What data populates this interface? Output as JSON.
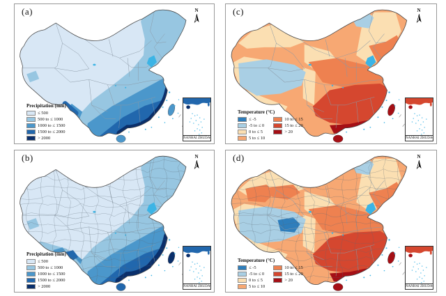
{
  "figure": {
    "water_color": "#3CB4E5",
    "panels": [
      {
        "id": "a",
        "label": "(a)",
        "scheme": "precip",
        "fine": false,
        "north_label": "N",
        "inset_label": "NANHAI ZHUDAO",
        "legend": {
          "title": "Precipitation (mm)",
          "columns": 1,
          "items": [
            {
              "label": "≤ 500",
              "color": "#D8E7F5"
            },
            {
              "label": "500 to ≤ 1000",
              "color": "#97C6E1"
            },
            {
              "label": "1000 to ≤ 1500",
              "color": "#4B97CB"
            },
            {
              "label": "1500 to ≤ 2000",
              "color": "#2167AD"
            },
            {
              "label": "> 2000",
              "color": "#0A2F6B"
            }
          ]
        }
      },
      {
        "id": "b",
        "label": "(b)",
        "scheme": "precip",
        "fine": true,
        "north_label": "N",
        "inset_label": "NANHAI ZHUDAO",
        "legend": {
          "title": "Precipitation (mm)",
          "columns": 1,
          "items": [
            {
              "label": "≤ 500",
              "color": "#D8E7F5"
            },
            {
              "label": "500 to ≤ 1000",
              "color": "#97C6E1"
            },
            {
              "label": "1000 to ≤ 1500",
              "color": "#4B97CB"
            },
            {
              "label": "1500 to ≤ 2000",
              "color": "#2167AD"
            },
            {
              "label": "> 2000",
              "color": "#0A2F6B"
            }
          ]
        }
      },
      {
        "id": "c",
        "label": "(c)",
        "scheme": "temp",
        "fine": false,
        "north_label": "N",
        "inset_label": "NANHAI ZHUDAO",
        "legend": {
          "title": "Temperature (°C)",
          "columns": 2,
          "items": [
            {
              "label": "≤ -5",
              "color": "#2E7EBC"
            },
            {
              "label": "-5 to ≤ 0",
              "color": "#A9CFE4"
            },
            {
              "label": "0 to ≤ 5",
              "color": "#FBDFB2"
            },
            {
              "label": "5 to ≤ 10",
              "color": "#F7A873"
            },
            {
              "label": "10 to ≤ 15",
              "color": "#EE8150"
            },
            {
              "label": "15 to ≤ 20",
              "color": "#D5472F"
            },
            {
              "label": "> 20",
              "color": "#A50F15"
            }
          ]
        }
      },
      {
        "id": "d",
        "label": "(d)",
        "scheme": "temp",
        "fine": true,
        "north_label": "N",
        "inset_label": "NANHAI ZHUDAO",
        "legend": {
          "title": "Temperature (°C)",
          "columns": 2,
          "items": [
            {
              "label": "≤ -5",
              "color": "#2E7EBC"
            },
            {
              "label": "-5 to ≤ 0",
              "color": "#A9CFE4"
            },
            {
              "label": "0 to ≤ 5",
              "color": "#FBDFB2"
            },
            {
              "label": "5 to ≤ 10",
              "color": "#F7A873"
            },
            {
              "label": "10 to ≤ 15",
              "color": "#EE8150"
            },
            {
              "label": "15 to ≤ 20",
              "color": "#D5472F"
            },
            {
              "label": "> 20",
              "color": "#A50F15"
            }
          ]
        }
      }
    ]
  }
}
